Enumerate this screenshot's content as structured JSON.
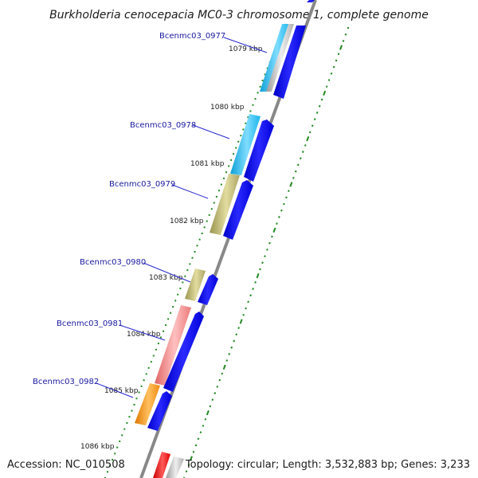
{
  "title": "Burkholderia cenocepacia MC0-3 chromosome 1, complete genome",
  "footer": {
    "accession": "Accession: NC_010508",
    "summary": "Topology: circular; Length: 3,532,883 bp; Genes: 3,233"
  },
  "ticks": [
    "1079 kbp",
    "1080 kbp",
    "1081 kbp",
    "1082 kbp",
    "1083 kbp",
    "1084 kbp",
    "1085 kbp",
    "1086 kbp"
  ],
  "genes": [
    {
      "label": "Bcenmc03_0977",
      "color": "#22bbee"
    },
    {
      "label": "Bcenmc03_0978",
      "color": "#22bbee"
    },
    {
      "label": "Bcenmc03_0979",
      "color": "#b0a860"
    },
    {
      "label": "Bcenmc03_0980",
      "color": "#b0a860"
    },
    {
      "label": "Bcenmc03_0981",
      "color": "#ee7777"
    },
    {
      "label": "Bcenmc03_0982",
      "color": "#ff8c00"
    }
  ],
  "colors": {
    "backbone": "#888888",
    "strand": "#0000ee",
    "gc_dots": "#228822",
    "red_block": "#ee0000",
    "grey_block": "#c8c8c8"
  }
}
